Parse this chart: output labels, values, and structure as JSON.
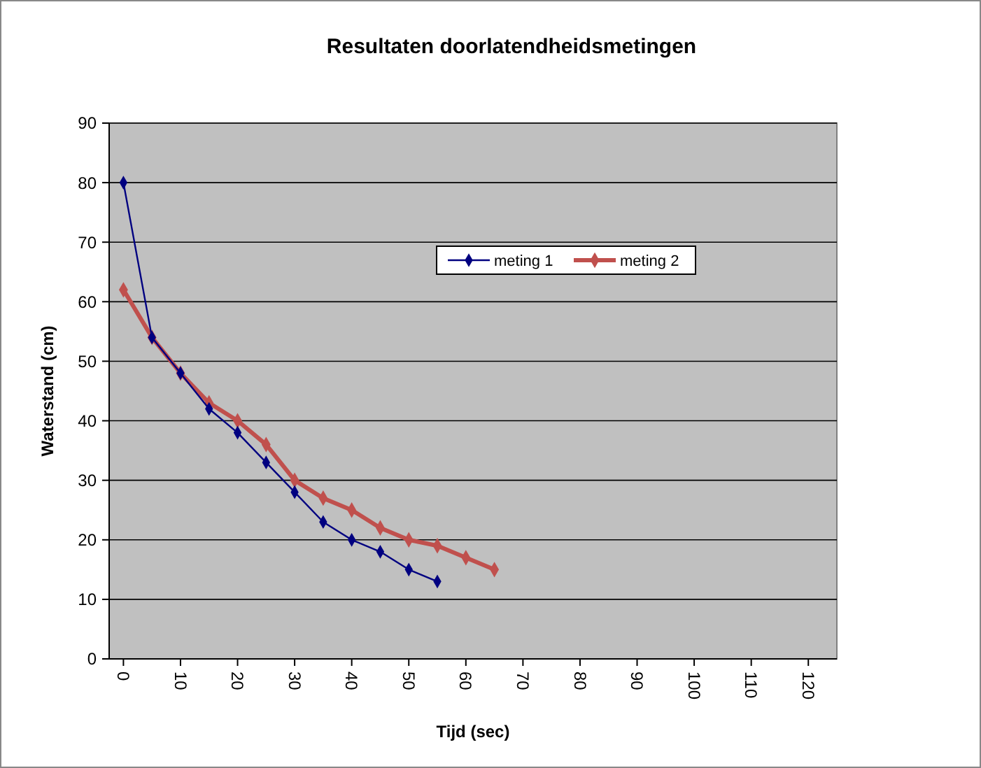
{
  "chart_data": {
    "type": "line",
    "title": "Resultaten doorlatendheidsmetingen",
    "xlabel": "Tijd (sec)",
    "ylabel": "Waterstand (cm)",
    "x": [
      0,
      5,
      10,
      15,
      20,
      25,
      30,
      35,
      40,
      45,
      50,
      55,
      60,
      65
    ],
    "series": [
      {
        "name": "meting 1",
        "color": "#000080",
        "x": [
          0,
          5,
          10,
          15,
          20,
          25,
          30,
          35,
          40,
          45,
          50,
          55
        ],
        "values": [
          80,
          54,
          48,
          42,
          38,
          33,
          28,
          23,
          20,
          18,
          15,
          13
        ]
      },
      {
        "name": "meting 2",
        "color": "#c0504d",
        "values": [
          62,
          54,
          48,
          43,
          40,
          36,
          30,
          27,
          25,
          22,
          20,
          19,
          17,
          15
        ]
      }
    ],
    "xlim": [
      -2.5,
      125
    ],
    "xticks": [
      0,
      10,
      20,
      30,
      40,
      50,
      60,
      70,
      80,
      90,
      100,
      110,
      120
    ],
    "ylim": [
      0,
      90
    ],
    "yticks": [
      0,
      10,
      20,
      30,
      40,
      50,
      60,
      70,
      80,
      90
    ],
    "grid": "y",
    "legend": "top right",
    "marker": "diamond",
    "line_style": "solid"
  }
}
